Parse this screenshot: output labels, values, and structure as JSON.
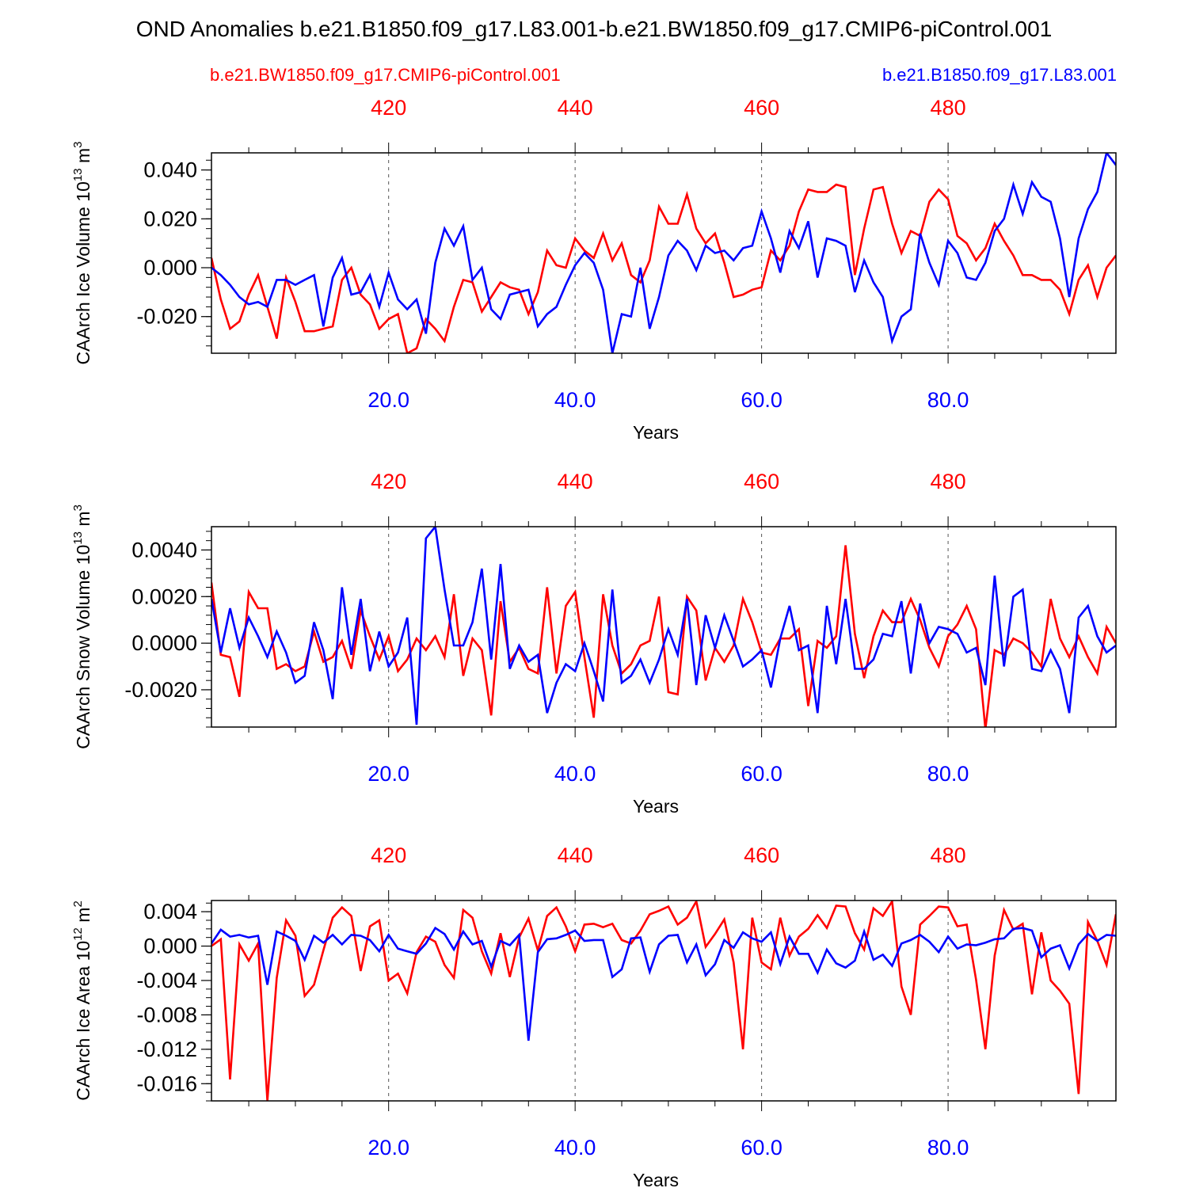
{
  "title": "OND Anomalies b.e21.B1850.f09_g17.L83.001-b.e21.BW1850.f09_g17.CMIP6-piControl.001",
  "legend": {
    "red_name": "b.e21.BW1850.f09_g17.CMIP6-piControl.001",
    "blue_name": "b.e21.B1850.f09_g17.L83.001"
  },
  "colors": {
    "red": "#ff0000",
    "blue": "#0000ff",
    "axis": "#000000",
    "grid": "#555555"
  },
  "chart_data": [
    {
      "type": "line",
      "ylabel": "CAArch Ice Volume 10",
      "ylabel_exp": "13",
      "ylabel_unit": " m",
      "ylabel_unit_exp": "3",
      "xlabel": "Years",
      "xlim": [
        1,
        98
      ],
      "ylim": [
        -0.035,
        0.047
      ],
      "yticks": [
        -0.02,
        0.0,
        0.02,
        0.04
      ],
      "ytick_labels": [
        "-0.020",
        "0.000",
        "0.020",
        "0.040"
      ],
      "yminor_step": 0.004,
      "bottom_ticks": [
        20,
        40,
        60,
        80
      ],
      "bottom_tick_labels": [
        "20.0",
        "40.0",
        "60.0",
        "80.0"
      ],
      "top_tick_labels": [
        "420",
        "440",
        "460",
        "480"
      ],
      "series": [
        {
          "name": "b.e21.BW1850.f09_g17.CMIP6-piControl.001",
          "color": "red",
          "values": [
            0.004,
            -0.013,
            -0.025,
            -0.022,
            -0.011,
            -0.003,
            -0.016,
            -0.029,
            -0.004,
            -0.014,
            -0.026,
            -0.026,
            -0.025,
            -0.024,
            -0.005,
            0.0,
            -0.011,
            -0.015,
            -0.025,
            -0.021,
            -0.019,
            -0.035,
            -0.033,
            -0.021,
            -0.025,
            -0.03,
            -0.016,
            -0.005,
            -0.006,
            -0.018,
            -0.012,
            -0.006,
            -0.008,
            -0.009,
            -0.019,
            -0.01,
            0.007,
            0.001,
            0.0,
            0.012,
            0.007,
            0.004,
            0.014,
            0.003,
            0.01,
            -0.003,
            -0.006,
            0.003,
            0.025,
            0.018,
            0.018,
            0.03,
            0.016,
            0.01,
            0.014,
            0.002,
            -0.012,
            -0.011,
            -0.009,
            -0.008,
            0.007,
            0.003,
            0.009,
            0.023,
            0.032,
            0.031,
            0.031,
            0.034,
            0.033,
            -0.003,
            0.016,
            0.032,
            0.033,
            0.018,
            0.006,
            0.015,
            0.013,
            0.027,
            0.032,
            0.028,
            0.013,
            0.01,
            0.003,
            0.008,
            0.018,
            0.011,
            0.005,
            -0.003,
            -0.003,
            -0.005,
            -0.005,
            -0.009,
            -0.019,
            -0.005,
            0.001,
            -0.012,
            0.0,
            0.005
          ]
        },
        {
          "name": "b.e21.B1850.f09_g17.L83.001",
          "color": "blue",
          "values": [
            0.0,
            -0.003,
            -0.007,
            -0.012,
            -0.015,
            -0.014,
            -0.016,
            -0.005,
            -0.005,
            -0.007,
            -0.005,
            -0.003,
            -0.024,
            -0.004,
            0.004,
            -0.011,
            -0.01,
            -0.003,
            -0.016,
            -0.002,
            -0.013,
            -0.017,
            -0.013,
            -0.027,
            0.002,
            0.016,
            0.009,
            0.017,
            -0.005,
            0.0,
            -0.017,
            -0.021,
            -0.011,
            -0.01,
            -0.009,
            -0.024,
            -0.019,
            -0.016,
            -0.007,
            0.001,
            0.006,
            0.002,
            -0.009,
            -0.035,
            -0.019,
            -0.02,
            0.0,
            -0.025,
            -0.012,
            0.005,
            0.011,
            0.007,
            -0.001,
            0.009,
            0.006,
            0.007,
            0.003,
            0.008,
            0.009,
            0.023,
            0.012,
            -0.002,
            0.015,
            0.008,
            0.019,
            -0.004,
            0.012,
            0.011,
            0.009,
            -0.01,
            0.003,
            -0.006,
            -0.012,
            -0.03,
            -0.02,
            -0.017,
            0.014,
            0.002,
            -0.007,
            0.011,
            0.006,
            -0.004,
            -0.005,
            0.002,
            0.015,
            0.02,
            0.034,
            0.022,
            0.035,
            0.029,
            0.027,
            0.012,
            -0.012,
            0.012,
            0.024,
            0.031,
            0.047,
            0.042
          ]
        }
      ]
    },
    {
      "type": "line",
      "ylabel": "CAArch Snow Volume 10",
      "ylabel_exp": "13",
      "ylabel_unit": " m",
      "ylabel_unit_exp": "3",
      "xlabel": "Years",
      "xlim": [
        1,
        98
      ],
      "ylim": [
        -0.0036,
        0.005
      ],
      "yticks": [
        -0.002,
        0.0,
        0.002,
        0.004
      ],
      "ytick_labels": [
        "-0.0020",
        "0.0000",
        "0.0020",
        "0.0040"
      ],
      "yminor_step": 0.0004,
      "bottom_ticks": [
        20,
        40,
        60,
        80
      ],
      "bottom_tick_labels": [
        "20.0",
        "40.0",
        "60.0",
        "80.0"
      ],
      "top_tick_labels": [
        "420",
        "440",
        "460",
        "480"
      ],
      "series": [
        {
          "name": "b.e21.BW1850.f09_g17.CMIP6-piControl.001",
          "color": "red",
          "values": [
            0.0026,
            -0.0005,
            -0.0006,
            -0.0023,
            0.0022,
            0.0015,
            0.0015,
            -0.0011,
            -0.0009,
            -0.0012,
            -0.001,
            0.0005,
            -0.0008,
            -0.0006,
            0.0001,
            -0.0011,
            0.0014,
            0.0003,
            -0.0007,
            0.0003,
            -0.0012,
            -0.0007,
            0.0002,
            -0.0003,
            0.0003,
            -0.0006,
            0.0021,
            -0.0014,
            0.0002,
            -0.0003,
            -0.0031,
            0.0018,
            -0.0008,
            -0.0002,
            -0.0011,
            -0.0013,
            0.0024,
            -0.0013,
            0.0016,
            0.0022,
            -0.0006,
            -0.0032,
            0.0021,
            -0.0001,
            -0.0013,
            -0.0009,
            -0.0001,
            0.0001,
            0.002,
            -0.0021,
            -0.0022,
            0.002,
            0.0014,
            -0.0016,
            -0.0002,
            -0.0008,
            -0.0001,
            0.0019,
            0.0009,
            -0.0004,
            -0.0005,
            0.0002,
            0.0002,
            0.0006,
            -0.0027,
            0.0001,
            -0.0002,
            0.0003,
            0.0042,
            0.0004,
            -0.0015,
            0.0003,
            0.0014,
            0.0009,
            0.0009,
            0.0019,
            0.001,
            -0.0002,
            -0.001,
            0.0003,
            0.0008,
            0.0016,
            0.0006,
            -0.0037,
            -0.0003,
            -0.0005,
            0.0002,
            0.0,
            -0.0004,
            -0.001,
            0.0019,
            0.0002,
            -0.0006,
            0.0003,
            -0.0006,
            -0.0013,
            0.0007,
            0.0
          ]
        },
        {
          "name": "b.e21.B1850.f09_g17.L83.001",
          "color": "blue",
          "values": [
            0.0019,
            -0.0004,
            0.0015,
            -0.0002,
            0.0011,
            0.0003,
            -0.0006,
            0.0005,
            -0.0004,
            -0.0017,
            -0.0014,
            0.0009,
            -0.0003,
            -0.0024,
            0.0024,
            -0.0005,
            0.0019,
            -0.0012,
            0.0005,
            -0.001,
            -0.0004,
            0.0011,
            -0.0035,
            0.0045,
            0.005,
            0.0023,
            -0.0001,
            -0.0001,
            0.0009,
            0.0032,
            -0.0007,
            0.0034,
            -0.0011,
            -0.0001,
            -0.0008,
            -0.0005,
            -0.003,
            -0.0017,
            -0.0009,
            -0.0012,
            0.0,
            -0.0012,
            -0.0025,
            0.0023,
            -0.0017,
            -0.0014,
            -0.0007,
            -0.0017,
            -0.0007,
            0.0006,
            -0.0005,
            0.0019,
            -0.0018,
            0.0012,
            -0.0002,
            0.0012,
            0.0001,
            -0.001,
            -0.0007,
            -0.0003,
            -0.0019,
            0.0002,
            0.0016,
            -0.0003,
            -0.0001,
            -0.003,
            0.0016,
            -0.0009,
            0.0019,
            -0.0011,
            -0.0011,
            -0.0007,
            0.0004,
            0.0003,
            0.0018,
            -0.0013,
            0.0017,
            0.0,
            0.0007,
            0.0006,
            0.0004,
            -0.0004,
            -0.0002,
            -0.0018,
            0.0029,
            -0.001,
            0.002,
            0.0023,
            -0.0011,
            -0.0012,
            -0.0003,
            -0.0011,
            -0.003,
            0.0011,
            0.0016,
            0.0003,
            -0.0004,
            -0.0001
          ]
        }
      ]
    },
    {
      "type": "line",
      "ylabel": "CAArch Ice Area 10",
      "ylabel_exp": "12",
      "ylabel_unit": " m",
      "ylabel_unit_exp": "2",
      "xlabel": "Years",
      "xlim": [
        1,
        98
      ],
      "ylim": [
        -0.018,
        0.0053
      ],
      "yticks": [
        -0.016,
        -0.012,
        -0.008,
        -0.004,
        0.0,
        0.004
      ],
      "ytick_labels": [
        "-0.016",
        "-0.012",
        "-0.008",
        "-0.004",
        "0.000",
        "0.004"
      ],
      "yminor_step": 0.001,
      "bottom_ticks": [
        20,
        40,
        60,
        80
      ],
      "bottom_tick_labels": [
        "20.0",
        "40.0",
        "60.0",
        "80.0"
      ],
      "top_tick_labels": [
        "420",
        "440",
        "460",
        "480"
      ],
      "series": [
        {
          "name": "b.e21.BW1850.f09_g17.CMIP6-piControl.001",
          "color": "red",
          "values": [
            0.0,
            0.0008,
            -0.0155,
            0.0002,
            -0.0017,
            0.0003,
            -0.018,
            -0.0037,
            0.003,
            0.0012,
            -0.0058,
            -0.0045,
            -0.0005,
            0.0033,
            0.0045,
            0.0035,
            -0.0029,
            0.0023,
            0.003,
            -0.004,
            -0.0032,
            -0.0055,
            -0.0007,
            0.0011,
            0.0005,
            -0.0022,
            -0.0037,
            0.0042,
            0.0033,
            -0.0006,
            -0.0032,
            0.0015,
            -0.0036,
            0.001,
            0.0032,
            -0.0005,
            0.0035,
            0.0045,
            0.0023,
            -0.0006,
            0.0025,
            0.0026,
            0.0022,
            0.0026,
            0.0007,
            0.0003,
            0.0018,
            0.0037,
            0.0041,
            0.0046,
            0.0025,
            0.0033,
            0.0052,
            -0.0001,
            0.0014,
            0.0031,
            -0.0019,
            -0.012,
            0.0033,
            -0.0019,
            -0.0027,
            0.0033,
            -0.0011,
            0.0011,
            0.002,
            0.0036,
            0.0021,
            0.0047,
            0.0046,
            0.0015,
            -0.0004,
            0.0044,
            0.0035,
            0.0052,
            -0.0047,
            -0.008,
            0.0025,
            0.0035,
            0.0046,
            0.0045,
            0.0023,
            0.0025,
            -0.0039,
            -0.012,
            -0.0011,
            0.0042,
            0.0019,
            0.0026,
            -0.0056,
            0.0016,
            -0.004,
            -0.0052,
            -0.0067,
            -0.0172,
            0.0028,
            0.0006,
            -0.0022,
            0.0037
          ]
        },
        {
          "name": "b.e21.B1850.f09_g17.L83.001",
          "color": "blue",
          "values": [
            0.0003,
            0.0019,
            0.0011,
            0.0013,
            0.001,
            0.0012,
            -0.0045,
            0.0017,
            0.0012,
            0.0006,
            -0.0016,
            0.0012,
            0.0004,
            0.0013,
            0.0002,
            0.0013,
            0.0012,
            0.0007,
            -0.0006,
            0.0013,
            -0.0003,
            -0.0006,
            -0.0009,
            0.0003,
            0.0021,
            0.0014,
            -0.0004,
            0.0017,
            0.0002,
            0.0006,
            -0.0024,
            0.0006,
            0.0001,
            0.0013,
            -0.011,
            -0.0007,
            0.0008,
            0.0009,
            0.0013,
            0.0018,
            0.0006,
            0.0007,
            0.0007,
            -0.0036,
            -0.0027,
            0.0009,
            0.001,
            -0.003,
            0.0002,
            0.0012,
            0.0013,
            -0.0019,
            0.0002,
            -0.0034,
            -0.0021,
            0.0007,
            -0.0002,
            0.0016,
            0.0009,
            0.0005,
            0.0016,
            -0.0021,
            0.0011,
            -0.0009,
            -0.0009,
            -0.0031,
            -0.0004,
            -0.002,
            -0.0025,
            -0.0017,
            0.0017,
            -0.0016,
            -0.001,
            -0.0023,
            0.0003,
            0.0007,
            0.0013,
            0.0005,
            -0.0007,
            0.0011,
            -0.0003,
            0.0002,
            0.0001,
            0.0004,
            0.0008,
            0.0009,
            0.002,
            0.0021,
            0.0018,
            -0.0013,
            -0.0003,
            0.0001,
            -0.0026,
            0.0002,
            0.0014,
            0.0006,
            0.0013,
            0.0012
          ]
        }
      ]
    }
  ]
}
